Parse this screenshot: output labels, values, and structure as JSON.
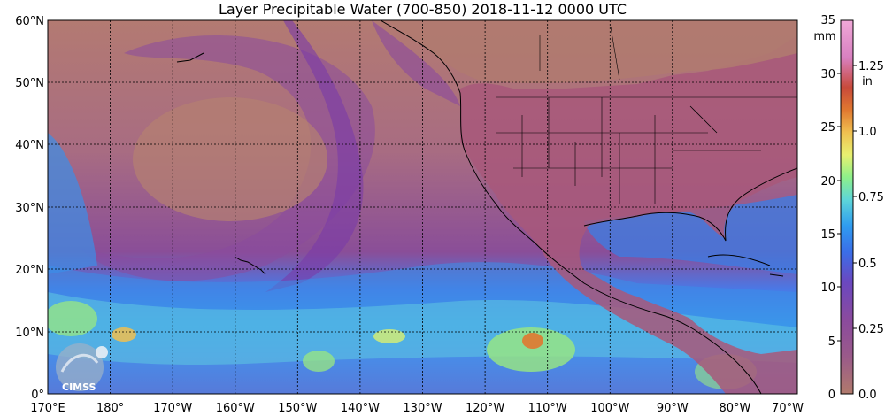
{
  "title": "Layer Precipitable Water (700-850)  2018-11-12 0000 UTC",
  "latitude_labels": [
    "60°N",
    "50°N",
    "40°N",
    "30°N",
    "20°N",
    "10°N",
    "0°"
  ],
  "longitude_labels": [
    "170°E",
    "180°",
    "170°W",
    "160°W",
    "150°W",
    "140°W",
    "130°W",
    "120°W",
    "110°W",
    "100°W",
    "90°W",
    "80°W",
    "70°W"
  ],
  "colorbar": {
    "mm_unit": "mm",
    "in_unit": "in",
    "mm_ticks": [
      "35",
      "30",
      "25",
      "20",
      "15",
      "10",
      "5",
      "0"
    ],
    "in_ticks": [
      "1.25",
      "1.0",
      "0.75",
      "0.5",
      "0.25",
      "0.0"
    ],
    "colors": [
      "#b07a6c",
      "#9a5a8a",
      "#8a4a9e",
      "#6a48c0",
      "#3a6ee8",
      "#2f9cf0",
      "#5ed6d8",
      "#8ef08a",
      "#e8f070",
      "#f0c050",
      "#e07830",
      "#c84a3a",
      "#d880c0",
      "#f0a8d8"
    ]
  },
  "logo": {
    "text": "CIMSS"
  }
}
